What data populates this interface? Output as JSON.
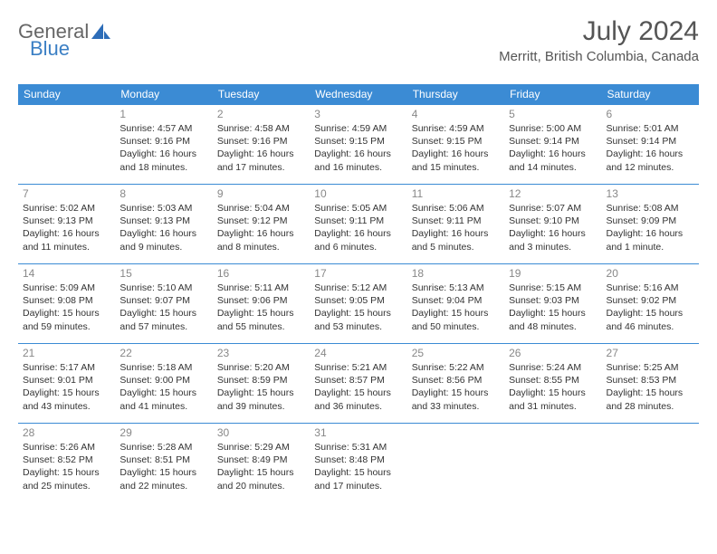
{
  "brand": {
    "general": "General",
    "blue": "Blue"
  },
  "title": "July 2024",
  "location": "Merritt, British Columbia, Canada",
  "colors": {
    "header_bg": "#3b8bd4",
    "header_fg": "#ffffff",
    "border": "#3b8bd4",
    "daynum": "#888888",
    "text": "#333333",
    "title": "#555555"
  },
  "weekdays": [
    "Sunday",
    "Monday",
    "Tuesday",
    "Wednesday",
    "Thursday",
    "Friday",
    "Saturday"
  ],
  "weeks": [
    [
      null,
      {
        "n": "1",
        "sr": "4:57 AM",
        "ss": "9:16 PM",
        "dl": "16 hours and 18 minutes."
      },
      {
        "n": "2",
        "sr": "4:58 AM",
        "ss": "9:16 PM",
        "dl": "16 hours and 17 minutes."
      },
      {
        "n": "3",
        "sr": "4:59 AM",
        "ss": "9:15 PM",
        "dl": "16 hours and 16 minutes."
      },
      {
        "n": "4",
        "sr": "4:59 AM",
        "ss": "9:15 PM",
        "dl": "16 hours and 15 minutes."
      },
      {
        "n": "5",
        "sr": "5:00 AM",
        "ss": "9:14 PM",
        "dl": "16 hours and 14 minutes."
      },
      {
        "n": "6",
        "sr": "5:01 AM",
        "ss": "9:14 PM",
        "dl": "16 hours and 12 minutes."
      }
    ],
    [
      {
        "n": "7",
        "sr": "5:02 AM",
        "ss": "9:13 PM",
        "dl": "16 hours and 11 minutes."
      },
      {
        "n": "8",
        "sr": "5:03 AM",
        "ss": "9:13 PM",
        "dl": "16 hours and 9 minutes."
      },
      {
        "n": "9",
        "sr": "5:04 AM",
        "ss": "9:12 PM",
        "dl": "16 hours and 8 minutes."
      },
      {
        "n": "10",
        "sr": "5:05 AM",
        "ss": "9:11 PM",
        "dl": "16 hours and 6 minutes."
      },
      {
        "n": "11",
        "sr": "5:06 AM",
        "ss": "9:11 PM",
        "dl": "16 hours and 5 minutes."
      },
      {
        "n": "12",
        "sr": "5:07 AM",
        "ss": "9:10 PM",
        "dl": "16 hours and 3 minutes."
      },
      {
        "n": "13",
        "sr": "5:08 AM",
        "ss": "9:09 PM",
        "dl": "16 hours and 1 minute."
      }
    ],
    [
      {
        "n": "14",
        "sr": "5:09 AM",
        "ss": "9:08 PM",
        "dl": "15 hours and 59 minutes."
      },
      {
        "n": "15",
        "sr": "5:10 AM",
        "ss": "9:07 PM",
        "dl": "15 hours and 57 minutes."
      },
      {
        "n": "16",
        "sr": "5:11 AM",
        "ss": "9:06 PM",
        "dl": "15 hours and 55 minutes."
      },
      {
        "n": "17",
        "sr": "5:12 AM",
        "ss": "9:05 PM",
        "dl": "15 hours and 53 minutes."
      },
      {
        "n": "18",
        "sr": "5:13 AM",
        "ss": "9:04 PM",
        "dl": "15 hours and 50 minutes."
      },
      {
        "n": "19",
        "sr": "5:15 AM",
        "ss": "9:03 PM",
        "dl": "15 hours and 48 minutes."
      },
      {
        "n": "20",
        "sr": "5:16 AM",
        "ss": "9:02 PM",
        "dl": "15 hours and 46 minutes."
      }
    ],
    [
      {
        "n": "21",
        "sr": "5:17 AM",
        "ss": "9:01 PM",
        "dl": "15 hours and 43 minutes."
      },
      {
        "n": "22",
        "sr": "5:18 AM",
        "ss": "9:00 PM",
        "dl": "15 hours and 41 minutes."
      },
      {
        "n": "23",
        "sr": "5:20 AM",
        "ss": "8:59 PM",
        "dl": "15 hours and 39 minutes."
      },
      {
        "n": "24",
        "sr": "5:21 AM",
        "ss": "8:57 PM",
        "dl": "15 hours and 36 minutes."
      },
      {
        "n": "25",
        "sr": "5:22 AM",
        "ss": "8:56 PM",
        "dl": "15 hours and 33 minutes."
      },
      {
        "n": "26",
        "sr": "5:24 AM",
        "ss": "8:55 PM",
        "dl": "15 hours and 31 minutes."
      },
      {
        "n": "27",
        "sr": "5:25 AM",
        "ss": "8:53 PM",
        "dl": "15 hours and 28 minutes."
      }
    ],
    [
      {
        "n": "28",
        "sr": "5:26 AM",
        "ss": "8:52 PM",
        "dl": "15 hours and 25 minutes."
      },
      {
        "n": "29",
        "sr": "5:28 AM",
        "ss": "8:51 PM",
        "dl": "15 hours and 22 minutes."
      },
      {
        "n": "30",
        "sr": "5:29 AM",
        "ss": "8:49 PM",
        "dl": "15 hours and 20 minutes."
      },
      {
        "n": "31",
        "sr": "5:31 AM",
        "ss": "8:48 PM",
        "dl": "15 hours and 17 minutes."
      },
      null,
      null,
      null
    ]
  ],
  "labels": {
    "sunrise": "Sunrise:",
    "sunset": "Sunset:",
    "daylight": "Daylight:"
  }
}
